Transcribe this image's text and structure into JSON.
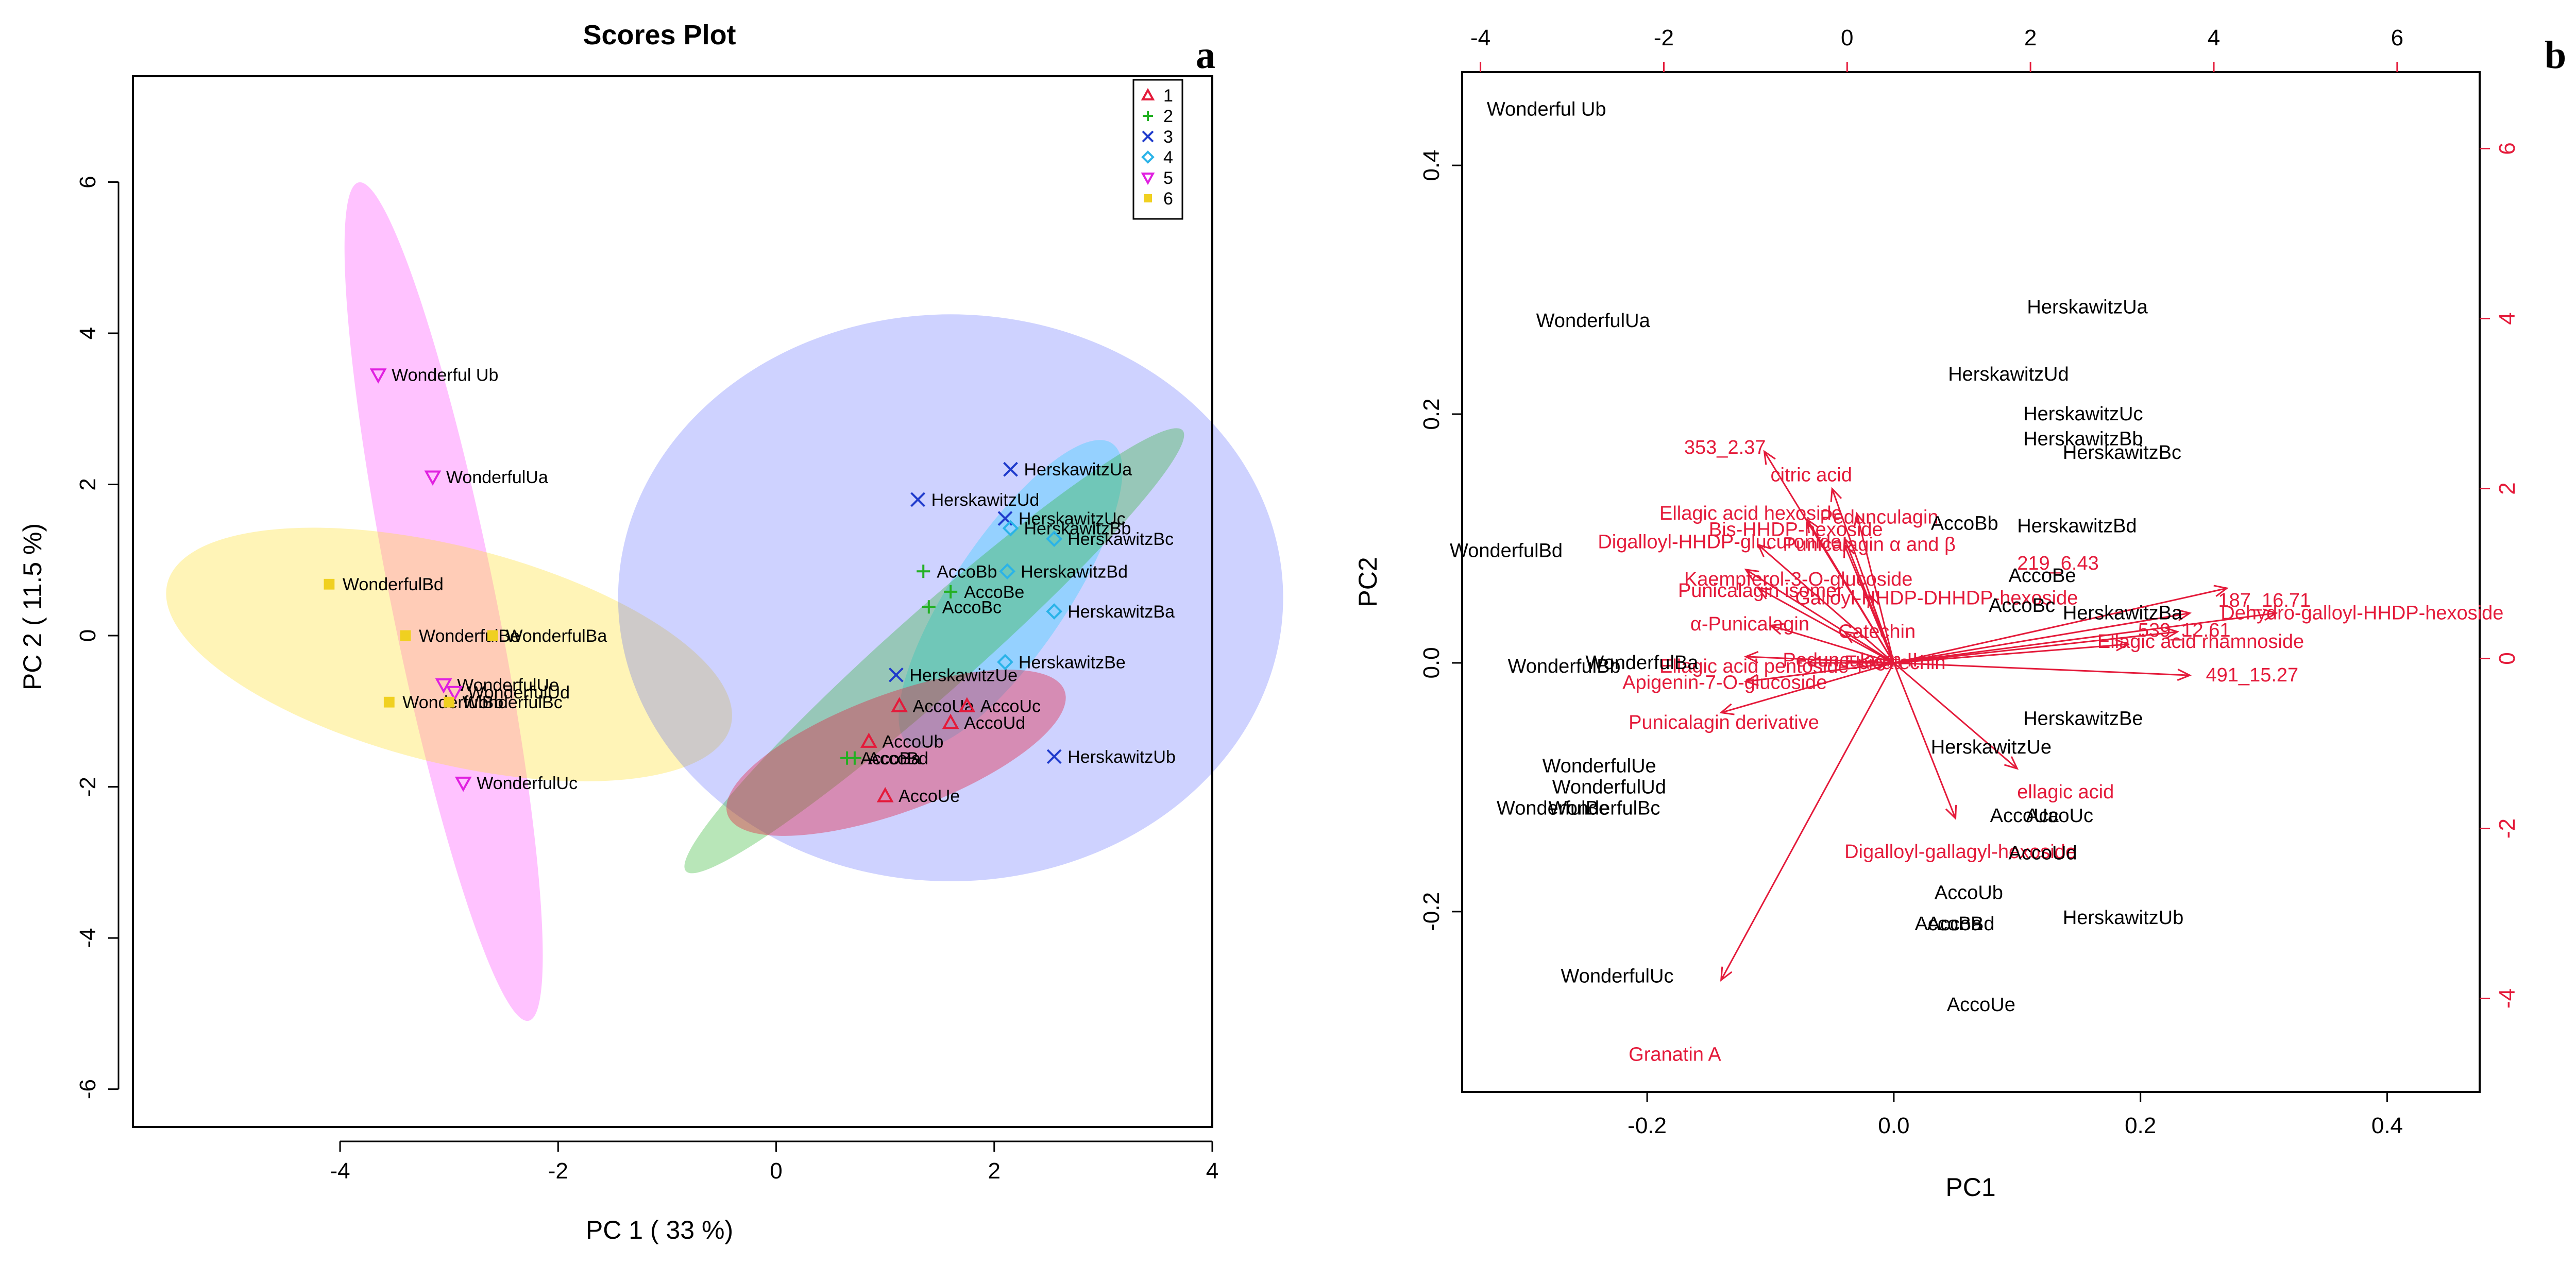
{
  "chart_data": [
    {
      "type": "scatter",
      "panel": "a",
      "title": "Scores Plot",
      "xlabel": "PC 1 ( 33 %)",
      "ylabel": "PC 2 ( 11.5 %)",
      "xlim": [
        -5.9,
        4.0
      ],
      "ylim": [
        -6.5,
        7.4
      ],
      "xticks": [
        -4,
        -2,
        0,
        2,
        4
      ],
      "xtick_labels": [
        "-4",
        "-2",
        "0",
        "2",
        "4"
      ],
      "yticks": [
        -6,
        -4,
        -2,
        0,
        2,
        4,
        6
      ],
      "ytick_labels": [
        "-6",
        "-4",
        "-2",
        "0",
        "2",
        "4",
        "6"
      ],
      "groups": [
        {
          "id": "1",
          "symbol": "△",
          "color": "#e41a3a",
          "fill": "#e41a3a"
        },
        {
          "id": "2",
          "symbol": "+",
          "color": "#22b022",
          "fill": "#22b022"
        },
        {
          "id": "3",
          "symbol": "×",
          "color": "#1f3bcc",
          "fill": "#3a4bff"
        },
        {
          "id": "4",
          "symbol": "◇",
          "color": "#2ab3e8",
          "fill": "#4fd0ff"
        },
        {
          "id": "5",
          "symbol": "▽",
          "color": "#e020e0",
          "fill": "#ff40ff"
        },
        {
          "id": "6",
          "symbol": "■",
          "color": "#f0d020",
          "fill": "#ffe030"
        }
      ],
      "ellipses": [
        {
          "group": "5",
          "cx": -3.05,
          "cy": 0.45,
          "rx": 5.6,
          "ry": 0.48,
          "angle_deg": -82,
          "opacity": 0.32
        },
        {
          "group": "6",
          "cx": -3.0,
          "cy": -0.25,
          "rx": 2.75,
          "ry": 1.35,
          "angle_deg": -20,
          "opacity": 0.35
        },
        {
          "group": "3",
          "cx": 1.6,
          "cy": 0.5,
          "rx": 3.05,
          "ry": 3.75,
          "angle_deg": 0,
          "opacity": 0.25
        },
        {
          "group": "4",
          "cx": 2.15,
          "cy": 0.55,
          "rx": 2.2,
          "ry": 0.55,
          "angle_deg": 65,
          "opacity": 0.45
        },
        {
          "group": "2",
          "cx": 1.45,
          "cy": -0.2,
          "rx": 3.7,
          "ry": 0.42,
          "angle_deg": 52,
          "opacity": 0.32
        },
        {
          "group": "1",
          "cx": 1.1,
          "cy": -1.55,
          "rx": 1.75,
          "ry": 0.7,
          "angle_deg": 28,
          "opacity": 0.38
        }
      ],
      "points": [
        {
          "label": "Wonderful Ub",
          "group": "5",
          "x": -3.65,
          "y": 3.45
        },
        {
          "label": "WonderfulUa",
          "group": "5",
          "x": -3.15,
          "y": 2.1
        },
        {
          "label": "WonderfulUe",
          "group": "5",
          "x": -3.05,
          "y": -0.65
        },
        {
          "label": "WonderfulUd",
          "group": "5",
          "x": -2.95,
          "y": -0.75
        },
        {
          "label": "WonderfulUc",
          "group": "5",
          "x": -2.87,
          "y": -1.95
        },
        {
          "label": "WonderfulBd",
          "group": "6",
          "x": -4.1,
          "y": 0.68
        },
        {
          "label": "WonderfulBe",
          "group": "6",
          "x": -3.4,
          "y": 0.0
        },
        {
          "label": "WonderfulBa",
          "group": "6",
          "x": -2.6,
          "y": 0.0
        },
        {
          "label": "WonderfulBb",
          "group": "6",
          "x": -3.55,
          "y": -0.88
        },
        {
          "label": "WonderfulBc",
          "group": "6",
          "x": -3.0,
          "y": -0.88
        },
        {
          "label": "HerskawitzUa",
          "group": "3",
          "x": 2.15,
          "y": 2.2
        },
        {
          "label": "HerskawitzUd",
          "group": "3",
          "x": 1.3,
          "y": 1.8
        },
        {
          "label": "HerskawitzUc",
          "group": "3",
          "x": 2.1,
          "y": 1.55
        },
        {
          "label": "HerskawitzUe",
          "group": "3",
          "x": 1.1,
          "y": -0.52
        },
        {
          "label": "HerskawitzUb",
          "group": "3",
          "x": 2.55,
          "y": -1.6
        },
        {
          "label": "HerskawitzBb",
          "group": "4",
          "x": 2.15,
          "y": 1.42
        },
        {
          "label": "HerskawitzBc",
          "group": "4",
          "x": 2.55,
          "y": 1.28
        },
        {
          "label": "HerskawitzBd",
          "group": "4",
          "x": 2.12,
          "y": 0.85
        },
        {
          "label": "HerskawitzBa",
          "group": "4",
          "x": 2.55,
          "y": 0.32
        },
        {
          "label": "HerskawitzBe",
          "group": "4",
          "x": 2.1,
          "y": -0.35
        },
        {
          "label": "AccoBb",
          "group": "2",
          "x": 1.35,
          "y": 0.85
        },
        {
          "label": "AccoBe",
          "group": "2",
          "x": 1.6,
          "y": 0.58
        },
        {
          "label": "AccoBc",
          "group": "2",
          "x": 1.4,
          "y": 0.38
        },
        {
          "label": "AccoBa",
          "group": "2",
          "x": 0.65,
          "y": -1.62
        },
        {
          "label": "AccoBd",
          "group": "2",
          "x": 0.72,
          "y": -1.62
        },
        {
          "label": "AccoUa",
          "group": "1",
          "x": 1.13,
          "y": -0.93
        },
        {
          "label": "AccoUc",
          "group": "1",
          "x": 1.75,
          "y": -0.93
        },
        {
          "label": "AccoUd",
          "group": "1",
          "x": 1.6,
          "y": -1.15
        },
        {
          "label": "AccoUb",
          "group": "1",
          "x": 0.85,
          "y": -1.4
        },
        {
          "label": "AccoUe",
          "group": "1",
          "x": 1.0,
          "y": -2.12
        }
      ]
    },
    {
      "type": "scatter",
      "panel": "b",
      "subtype": "biplot",
      "xlabel": "PC1",
      "ylabel": "PC2",
      "xlim": [
        -0.35,
        0.475
      ],
      "ylim": [
        -0.345,
        0.475
      ],
      "xticks": [
        -0.2,
        0.0,
        0.2,
        0.4
      ],
      "xtick_labels": [
        "-0.2",
        "0.0",
        "0.2",
        "0.4"
      ],
      "yticks": [
        -0.2,
        0.0,
        0.2,
        0.4
      ],
      "ytick_labels": [
        "-0.2",
        "0.0",
        "0.2",
        "0.4"
      ],
      "top_axis": {
        "lim": [
          -4.2,
          6.9
        ],
        "ticks": [
          -4,
          -2,
          0,
          2,
          4,
          6
        ],
        "tick_labels": [
          "-4",
          "-2",
          "0",
          "2",
          "4",
          "6"
        ]
      },
      "right_axis": {
        "lim": [
          -5.1,
          6.9
        ],
        "ticks": [
          -4,
          -2,
          0,
          2,
          4,
          6
        ],
        "tick_labels": [
          "-4",
          "-2",
          "0",
          "2",
          "4",
          "6"
        ]
      },
      "observations": [
        {
          "label": "Wonderful Ub",
          "x": -0.33,
          "y": 0.445
        },
        {
          "label": "WonderfulUa",
          "x": -0.29,
          "y": 0.275
        },
        {
          "label": "WonderfulBd",
          "x": -0.36,
          "y": 0.09
        },
        {
          "label": "WonderfulBb",
          "x": -0.313,
          "y": -0.003
        },
        {
          "label": "WonderfulBa",
          "x": -0.25,
          "y": 0.0
        },
        {
          "label": "WonderfulUe",
          "x": -0.285,
          "y": -0.083
        },
        {
          "label": "WonderfulUd",
          "x": -0.277,
          "y": -0.1
        },
        {
          "label": "WonderfulBe",
          "x": -0.322,
          "y": -0.117
        },
        {
          "label": "WonderfulBc",
          "x": -0.28,
          "y": -0.117
        },
        {
          "label": "WonderfulUc",
          "x": -0.27,
          "y": -0.252
        },
        {
          "label": "HerskawitzUa",
          "x": 0.108,
          "y": 0.286
        },
        {
          "label": "HerskawitzUd",
          "x": 0.044,
          "y": 0.232
        },
        {
          "label": "HerskawitzUc",
          "x": 0.105,
          "y": 0.2
        },
        {
          "label": "HerskawitzBb",
          "x": 0.105,
          "y": 0.18
        },
        {
          "label": "HerskawitzBc",
          "x": 0.137,
          "y": 0.169
        },
        {
          "label": "HerskawitzBd",
          "x": 0.1,
          "y": 0.11
        },
        {
          "label": "HerskawitzBa",
          "x": 0.137,
          "y": 0.04
        },
        {
          "label": "HerskawitzBe",
          "x": 0.105,
          "y": -0.045
        },
        {
          "label": "HerskawitzUe",
          "x": 0.03,
          "y": -0.068
        },
        {
          "label": "HerskawitzUb",
          "x": 0.137,
          "y": -0.205
        },
        {
          "label": "AccoBb",
          "x": 0.03,
          "y": 0.112
        },
        {
          "label": "AccoBe",
          "x": 0.093,
          "y": 0.07
        },
        {
          "label": "AccoBc",
          "x": 0.077,
          "y": 0.046
        },
        {
          "label": "AccoUa",
          "x": 0.078,
          "y": -0.123
        },
        {
          "label": "AccoUc",
          "x": 0.107,
          "y": -0.123
        },
        {
          "label": "AccoUd",
          "x": 0.093,
          "y": -0.153
        },
        {
          "label": "AccoUb",
          "x": 0.033,
          "y": -0.185
        },
        {
          "label": "AccoBa",
          "x": 0.017,
          "y": -0.21
        },
        {
          "label": "AccoBd",
          "x": 0.027,
          "y": -0.21
        },
        {
          "label": "AccoUe",
          "x": 0.043,
          "y": -0.275
        }
      ],
      "loadings": [
        {
          "label": "219_6.43",
          "x": 0.27,
          "y": 0.06,
          "lx": 0.1,
          "ly": 0.08
        },
        {
          "label": "187_16.71",
          "x": 0.24,
          "y": 0.04,
          "lx": 0.263,
          "ly": 0.05
        },
        {
          "label": "Dehydro-galloyl-HHDP-hexoside",
          "x": 0.31,
          "y": 0.04,
          "lx": 0.265,
          "ly": 0.04
        },
        {
          "label": "539_12.61",
          "x": 0.23,
          "y": 0.025,
          "lx": 0.198,
          "ly": 0.026
        },
        {
          "label": "Ellagic acid rhamnoside",
          "x": 0.19,
          "y": 0.015,
          "lx": 0.165,
          "ly": 0.017
        },
        {
          "label": "491_15.27",
          "x": 0.24,
          "y": -0.01,
          "lx": 0.253,
          "ly": -0.01
        },
        {
          "label": "353_2.37",
          "x": -0.105,
          "y": 0.17,
          "lx": -0.17,
          "ly": 0.173
        },
        {
          "label": "citric acid",
          "x": -0.05,
          "y": 0.14,
          "lx": -0.1,
          "ly": 0.151
        },
        {
          "label": "Ellagic acid hexoside",
          "x": -0.07,
          "y": 0.115,
          "lx": -0.19,
          "ly": 0.12
        },
        {
          "label": "Bis-HHDP-hexoside",
          "x": -0.04,
          "y": 0.1,
          "lx": -0.15,
          "ly": 0.107
        },
        {
          "label": "Pedunculagin",
          "x": -0.03,
          "y": 0.12,
          "lx": -0.06,
          "ly": 0.117
        },
        {
          "label": "Digalloyl-HHDP-glucuronide",
          "x": -0.11,
          "y": 0.095,
          "lx": -0.24,
          "ly": 0.097
        },
        {
          "label": "Punicalagin α and β",
          "x": -0.04,
          "y": 0.095,
          "lx": -0.09,
          "ly": 0.095
        },
        {
          "label": "Kaempferol-3-O-glucoside",
          "x": -0.12,
          "y": 0.075,
          "lx": -0.17,
          "ly": 0.067
        },
        {
          "label": "Punicalagin isomer",
          "x": -0.11,
          "y": 0.06,
          "lx": -0.175,
          "ly": 0.058
        },
        {
          "label": "Galloyl-HHDP-DHHDP-hexoside",
          "x": -0.02,
          "y": 0.055,
          "lx": -0.08,
          "ly": 0.052
        },
        {
          "label": "α-Punicalagin",
          "x": -0.1,
          "y": 0.03,
          "lx": -0.165,
          "ly": 0.031
        },
        {
          "label": "Catechin",
          "x": -0.04,
          "y": 0.025,
          "lx": -0.045,
          "ly": 0.025
        },
        {
          "label": "Ellagic acid pentoside",
          "x": -0.12,
          "y": 0.005,
          "lx": -0.19,
          "ly": -0.003
        },
        {
          "label": "Pedunculagin II",
          "x": -0.07,
          "y": 0.0,
          "lx": -0.09,
          "ly": 0.002
        },
        {
          "label": "Epicatechin",
          "x": -0.03,
          "y": 0.0,
          "lx": -0.04,
          "ly": 0.0
        },
        {
          "label": "Apigenin-7-O-glucoside",
          "x": -0.12,
          "y": -0.015,
          "lx": -0.22,
          "ly": -0.016
        },
        {
          "label": "Punicalagin derivative",
          "x": -0.14,
          "y": -0.04,
          "lx": -0.215,
          "ly": -0.048
        },
        {
          "label": "ellagic acid",
          "x": 0.1,
          "y": -0.085,
          "lx": 0.1,
          "ly": -0.104
        },
        {
          "label": "Digalloyl-gallagyl-hexoside",
          "x": 0.05,
          "y": -0.125,
          "lx": -0.04,
          "ly": -0.152
        },
        {
          "label": "Granatin A",
          "x": -0.14,
          "y": -0.255,
          "lx": -0.215,
          "ly": -0.315
        }
      ]
    }
  ]
}
